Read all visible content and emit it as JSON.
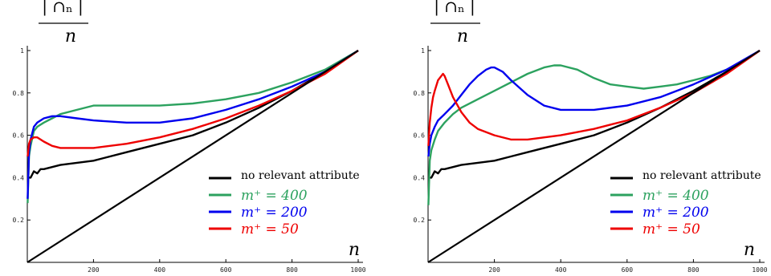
{
  "chart_data": [
    {
      "type": "line",
      "ylabel_top": "| ∩ₙ |",
      "ylabel_bottom": "n",
      "xlabel": "n",
      "xlim": [
        0,
        1000
      ],
      "ylim": [
        0,
        1
      ],
      "xticks": [
        200,
        400,
        600,
        800,
        1000
      ],
      "yticks": [
        0.2,
        0.4,
        0.6,
        0.8,
        1
      ],
      "ytick_labels": [
        "0.2",
        "0.4",
        "0.6",
        "0.8",
        "1"
      ],
      "legend_position": "lower-right",
      "series": [
        {
          "name": "no relevant attribute",
          "color": "#000000",
          "x": [
            1,
            5,
            10,
            20,
            30,
            40,
            50,
            75,
            100,
            150,
            200,
            300,
            400,
            500,
            600,
            700,
            800,
            900,
            1000
          ],
          "y": [
            0.4,
            0.4,
            0.4,
            0.43,
            0.42,
            0.44,
            0.44,
            0.45,
            0.46,
            0.47,
            0.48,
            0.52,
            0.56,
            0.6,
            0.66,
            0.73,
            0.81,
            0.9,
            1.0
          ]
        },
        {
          "name": "m⁺ = 400",
          "color": "#2ca25f",
          "x": [
            1,
            5,
            10,
            20,
            30,
            40,
            50,
            75,
            100,
            150,
            200,
            300,
            400,
            500,
            600,
            700,
            800,
            900,
            1000
          ],
          "y": [
            0.28,
            0.5,
            0.55,
            0.62,
            0.64,
            0.65,
            0.66,
            0.68,
            0.7,
            0.72,
            0.74,
            0.74,
            0.74,
            0.75,
            0.77,
            0.8,
            0.85,
            0.91,
            1.0
          ]
        },
        {
          "name": "m⁺ = 200",
          "color": "#0000ee",
          "x": [
            1,
            5,
            10,
            20,
            30,
            40,
            50,
            75,
            100,
            150,
            200,
            300,
            400,
            500,
            600,
            700,
            800,
            900,
            1000
          ],
          "y": [
            0.3,
            0.52,
            0.58,
            0.64,
            0.66,
            0.67,
            0.68,
            0.69,
            0.69,
            0.68,
            0.67,
            0.66,
            0.66,
            0.68,
            0.72,
            0.77,
            0.83,
            0.9,
            1.0
          ]
        },
        {
          "name": "m⁺ = 50",
          "color": "#ee0000",
          "x": [
            1,
            5,
            10,
            20,
            30,
            40,
            50,
            75,
            100,
            150,
            200,
            300,
            400,
            500,
            600,
            700,
            800,
            900,
            1000
          ],
          "y": [
            0.5,
            0.56,
            0.58,
            0.59,
            0.59,
            0.58,
            0.57,
            0.55,
            0.54,
            0.54,
            0.54,
            0.56,
            0.59,
            0.63,
            0.68,
            0.74,
            0.81,
            0.89,
            1.0
          ]
        },
        {
          "name": "",
          "color": "#000000",
          "x": [
            0,
            1000
          ],
          "y": [
            0,
            1
          ]
        }
      ]
    },
    {
      "type": "line",
      "ylabel_top": "| ∩ₙ |",
      "ylabel_bottom": "n",
      "xlabel": "n",
      "xlim": [
        0,
        1000
      ],
      "ylim": [
        0,
        1
      ],
      "xticks": [
        200,
        400,
        600,
        800,
        1000
      ],
      "yticks": [
        0.2,
        0.4,
        0.6,
        0.8,
        1
      ],
      "ytick_labels": [
        "0.2",
        "0.4",
        "0.6",
        "0.8",
        "1"
      ],
      "legend_position": "lower-right",
      "series": [
        {
          "name": "no relevant attribute",
          "color": "#000000",
          "x": [
            1,
            5,
            10,
            20,
            30,
            40,
            50,
            75,
            100,
            150,
            200,
            300,
            400,
            500,
            600,
            700,
            800,
            900,
            1000
          ],
          "y": [
            0.4,
            0.4,
            0.4,
            0.43,
            0.42,
            0.44,
            0.44,
            0.45,
            0.46,
            0.47,
            0.48,
            0.52,
            0.56,
            0.6,
            0.66,
            0.73,
            0.81,
            0.9,
            1.0
          ]
        },
        {
          "name": "m⁺ = 400",
          "color": "#2ca25f",
          "x": [
            1,
            5,
            10,
            20,
            30,
            50,
            75,
            100,
            150,
            200,
            250,
            300,
            350,
            380,
            400,
            450,
            500,
            550,
            600,
            650,
            700,
            750,
            800,
            850,
            900,
            950,
            1000
          ],
          "y": [
            0.27,
            0.48,
            0.53,
            0.58,
            0.62,
            0.66,
            0.7,
            0.73,
            0.77,
            0.81,
            0.85,
            0.89,
            0.92,
            0.93,
            0.93,
            0.91,
            0.87,
            0.84,
            0.83,
            0.82,
            0.83,
            0.84,
            0.86,
            0.88,
            0.91,
            0.95,
            1.0
          ]
        },
        {
          "name": "m⁺ = 200",
          "color": "#0000ee",
          "x": [
            1,
            5,
            10,
            20,
            30,
            50,
            75,
            100,
            125,
            150,
            175,
            190,
            200,
            225,
            250,
            300,
            350,
            400,
            450,
            500,
            600,
            700,
            800,
            900,
            1000
          ],
          "y": [
            0.5,
            0.56,
            0.6,
            0.64,
            0.67,
            0.7,
            0.74,
            0.79,
            0.84,
            0.88,
            0.91,
            0.92,
            0.92,
            0.9,
            0.86,
            0.79,
            0.74,
            0.72,
            0.72,
            0.72,
            0.74,
            0.78,
            0.84,
            0.91,
            1.0
          ]
        },
        {
          "name": "m⁺ = 50",
          "color": "#ee0000",
          "x": [
            1,
            5,
            10,
            15,
            20,
            30,
            40,
            45,
            50,
            60,
            75,
            100,
            125,
            150,
            200,
            250,
            300,
            400,
            500,
            600,
            700,
            800,
            900,
            1000
          ],
          "y": [
            0.55,
            0.66,
            0.73,
            0.78,
            0.81,
            0.86,
            0.88,
            0.89,
            0.88,
            0.84,
            0.78,
            0.71,
            0.66,
            0.63,
            0.6,
            0.58,
            0.58,
            0.6,
            0.63,
            0.67,
            0.73,
            0.8,
            0.89,
            1.0
          ]
        },
        {
          "name": "",
          "color": "#000000",
          "x": [
            0,
            1000
          ],
          "y": [
            0,
            1
          ]
        }
      ]
    }
  ]
}
